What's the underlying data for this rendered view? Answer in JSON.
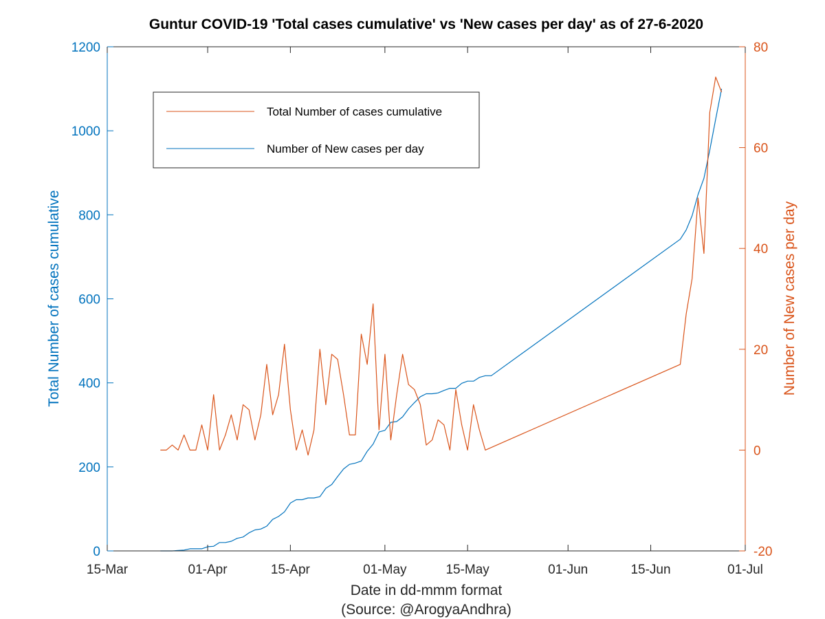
{
  "chart_data": {
    "type": "line",
    "title": "Guntur COVID-19 'Total cases cumulative' vs 'New cases per day' as of 27-6-2020",
    "xlabel": "Date in dd-mmm format",
    "source": "(Source: @ArogyaAndhra)",
    "ylabel_left": "Total Number of cases cumulative",
    "ylabel_right": "Number of New cases per day",
    "x_range": [
      "2020-03-15",
      "2020-07-01"
    ],
    "x_ticks": [
      {
        "date": "2020-03-15",
        "label": "15-Mar"
      },
      {
        "date": "2020-04-01",
        "label": "01-Apr"
      },
      {
        "date": "2020-04-15",
        "label": "15-Apr"
      },
      {
        "date": "2020-05-01",
        "label": "01-May"
      },
      {
        "date": "2020-05-15",
        "label": "15-May"
      },
      {
        "date": "2020-06-01",
        "label": "01-Jun"
      },
      {
        "date": "2020-06-15",
        "label": "15-Jun"
      },
      {
        "date": "2020-07-01",
        "label": "01-Jul"
      }
    ],
    "ylim_left": [
      0,
      1200
    ],
    "yticks_left": [
      "0",
      "200",
      "400",
      "600",
      "800",
      "1000",
      "1200"
    ],
    "ylim_right": [
      -20,
      80
    ],
    "yticks_right": [
      "-20",
      "0",
      "20",
      "40",
      "60",
      "80"
    ],
    "legend": {
      "position": "top-left",
      "entries": [
        "Total Number of cases cumulative",
        "Number of New cases per day"
      ]
    },
    "series": [
      {
        "name": "Total Number of cases cumulative",
        "axis": "left",
        "color": "#0072bd",
        "points": [
          [
            "2020-03-24",
            0
          ],
          [
            "2020-03-25",
            0
          ],
          [
            "2020-03-26",
            0
          ],
          [
            "2020-03-27",
            1
          ],
          [
            "2020-03-28",
            2
          ],
          [
            "2020-03-29",
            5
          ],
          [
            "2020-03-30",
            5
          ],
          [
            "2020-03-31",
            5
          ],
          [
            "2020-04-01",
            10
          ],
          [
            "2020-04-02",
            11
          ],
          [
            "2020-04-03",
            20
          ],
          [
            "2020-04-04",
            20
          ],
          [
            "2020-04-05",
            23
          ],
          [
            "2020-04-06",
            30
          ],
          [
            "2020-04-07",
            33
          ],
          [
            "2020-04-08",
            43
          ],
          [
            "2020-04-09",
            50
          ],
          [
            "2020-04-10",
            52
          ],
          [
            "2020-04-11",
            59
          ],
          [
            "2020-04-12",
            75
          ],
          [
            "2020-04-13",
            82
          ],
          [
            "2020-04-14",
            93
          ],
          [
            "2020-04-15",
            114
          ],
          [
            "2020-04-16",
            122
          ],
          [
            "2020-04-17",
            122
          ],
          [
            "2020-04-18",
            126
          ],
          [
            "2020-04-19",
            126
          ],
          [
            "2020-04-20",
            129
          ],
          [
            "2020-04-21",
            149
          ],
          [
            "2020-04-22",
            158
          ],
          [
            "2020-04-23",
            177
          ],
          [
            "2020-04-24",
            195
          ],
          [
            "2020-04-25",
            206
          ],
          [
            "2020-04-26",
            209
          ],
          [
            "2020-04-27",
            214
          ],
          [
            "2020-04-28",
            237
          ],
          [
            "2020-04-29",
            254
          ],
          [
            "2020-04-30",
            283
          ],
          [
            "2020-05-01",
            287
          ],
          [
            "2020-05-02",
            306
          ],
          [
            "2020-05-03",
            308
          ],
          [
            "2020-05-04",
            319
          ],
          [
            "2020-05-05",
            338
          ],
          [
            "2020-05-06",
            353
          ],
          [
            "2020-05-07",
            367
          ],
          [
            "2020-05-08",
            374
          ],
          [
            "2020-05-09",
            374
          ],
          [
            "2020-05-10",
            376
          ],
          [
            "2020-05-11",
            382
          ],
          [
            "2020-05-12",
            387
          ],
          [
            "2020-05-13",
            387
          ],
          [
            "2020-05-14",
            399
          ],
          [
            "2020-05-15",
            404
          ],
          [
            "2020-05-16",
            404
          ],
          [
            "2020-05-17",
            413
          ],
          [
            "2020-05-18",
            417
          ],
          [
            "2020-05-19",
            417
          ],
          [
            "2020-06-20",
            742
          ],
          [
            "2020-06-21",
            764
          ],
          [
            "2020-06-22",
            798
          ],
          [
            "2020-06-23",
            848
          ],
          [
            "2020-06-24",
            887
          ],
          [
            "2020-06-25",
            954
          ],
          [
            "2020-06-26",
            1028
          ],
          [
            "2020-06-27",
            1100
          ]
        ]
      },
      {
        "name": "Number of New cases per day",
        "axis": "right",
        "color": "#d95319",
        "points": [
          [
            "2020-03-24",
            0
          ],
          [
            "2020-03-25",
            0
          ],
          [
            "2020-03-26",
            1
          ],
          [
            "2020-03-27",
            0
          ],
          [
            "2020-03-28",
            3
          ],
          [
            "2020-03-29",
            0
          ],
          [
            "2020-03-30",
            0
          ],
          [
            "2020-03-31",
            5
          ],
          [
            "2020-04-01",
            0
          ],
          [
            "2020-04-02",
            11
          ],
          [
            "2020-04-03",
            0
          ],
          [
            "2020-04-04",
            3
          ],
          [
            "2020-04-05",
            7
          ],
          [
            "2020-04-06",
            2
          ],
          [
            "2020-04-07",
            9
          ],
          [
            "2020-04-08",
            8
          ],
          [
            "2020-04-09",
            2
          ],
          [
            "2020-04-10",
            7
          ],
          [
            "2020-04-11",
            17
          ],
          [
            "2020-04-12",
            7
          ],
          [
            "2020-04-13",
            11
          ],
          [
            "2020-04-14",
            21
          ],
          [
            "2020-04-15",
            8
          ],
          [
            "2020-04-16",
            0
          ],
          [
            "2020-04-17",
            4
          ],
          [
            "2020-04-18",
            -1
          ],
          [
            "2020-04-19",
            4
          ],
          [
            "2020-04-20",
            20
          ],
          [
            "2020-04-21",
            9
          ],
          [
            "2020-04-22",
            19
          ],
          [
            "2020-04-23",
            18
          ],
          [
            "2020-04-24",
            11
          ],
          [
            "2020-04-25",
            3
          ],
          [
            "2020-04-26",
            3
          ],
          [
            "2020-04-27",
            23
          ],
          [
            "2020-04-28",
            17
          ],
          [
            "2020-04-29",
            29
          ],
          [
            "2020-04-30",
            4
          ],
          [
            "2020-05-01",
            19
          ],
          [
            "2020-05-02",
            2
          ],
          [
            "2020-05-03",
            11
          ],
          [
            "2020-05-04",
            19
          ],
          [
            "2020-05-05",
            13
          ],
          [
            "2020-05-06",
            12
          ],
          [
            "2020-05-07",
            9
          ],
          [
            "2020-05-08",
            1
          ],
          [
            "2020-05-09",
            2
          ],
          [
            "2020-05-10",
            6
          ],
          [
            "2020-05-11",
            5
          ],
          [
            "2020-05-12",
            0
          ],
          [
            "2020-05-13",
            12
          ],
          [
            "2020-05-14",
            5
          ],
          [
            "2020-05-15",
            0
          ],
          [
            "2020-05-16",
            9
          ],
          [
            "2020-05-17",
            4
          ],
          [
            "2020-05-18",
            0
          ],
          [
            "2020-06-20",
            17
          ],
          [
            "2020-06-21",
            27
          ],
          [
            "2020-06-22",
            34
          ],
          [
            "2020-06-23",
            50
          ],
          [
            "2020-06-24",
            39
          ],
          [
            "2020-06-25",
            67
          ],
          [
            "2020-06-26",
            74
          ],
          [
            "2020-06-27",
            71
          ]
        ]
      }
    ]
  }
}
